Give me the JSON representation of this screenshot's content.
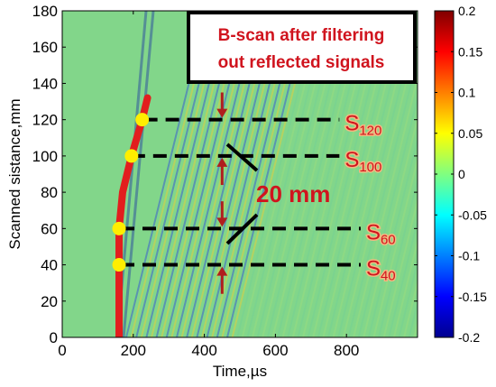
{
  "chart_data": {
    "type": "heatmap",
    "title": "B-scan after filtering out reflected signals",
    "title_lines": [
      "B-scan after filtering",
      "out reflected signals"
    ],
    "xlabel": "Time,µs",
    "ylabel": "Scanned sistance,mm",
    "xlim": [
      0,
      1000
    ],
    "ylim": [
      0,
      180
    ],
    "xticks": [
      0,
      200,
      400,
      600,
      800
    ],
    "yticks": [
      0,
      20,
      40,
      60,
      80,
      100,
      120,
      140,
      160,
      180
    ],
    "colorbar": {
      "min": -0.2,
      "max": 0.2,
      "ticks": [
        0.2,
        0.15,
        0.1,
        0.05,
        0,
        -0.05,
        -0.1,
        -0.15,
        -0.2
      ]
    },
    "markers": [
      {
        "x": 160,
        "y": 40,
        "color": "#ffee00"
      },
      {
        "x": 160,
        "y": 60,
        "color": "#ffee00"
      },
      {
        "x": 195,
        "y": 100,
        "color": "#ffee00"
      },
      {
        "x": 225,
        "y": 120,
        "color": "#ffee00"
      }
    ],
    "trace": {
      "color": "#e21e1e",
      "points": [
        [
          160,
          0
        ],
        [
          160,
          40
        ],
        [
          160,
          60
        ],
        [
          170,
          80
        ],
        [
          195,
          100
        ],
        [
          225,
          120
        ],
        [
          240,
          132
        ]
      ]
    },
    "reference_lines": [
      {
        "y": 120,
        "x0": 230,
        "x1": 780,
        "label": "S",
        "sub": "120"
      },
      {
        "y": 100,
        "x0": 195,
        "x1": 780,
        "label": "S",
        "sub": "100"
      },
      {
        "y": 60,
        "x0": 165,
        "x1": 840,
        "label": "S",
        "sub": "60"
      },
      {
        "y": 40,
        "x0": 165,
        "x1": 840,
        "label": "S",
        "sub": "40"
      }
    ],
    "arrows": [
      {
        "x": 450,
        "y_from": 135,
        "y_to": 121,
        "color": "#b01e1e"
      },
      {
        "x": 450,
        "y_from": 84,
        "y_to": 99,
        "color": "#b01e1e"
      },
      {
        "x": 450,
        "y_from": 75,
        "y_to": 61,
        "color": "#b01e1e"
      },
      {
        "x": 450,
        "y_from": 24,
        "y_to": 39,
        "color": "#b01e1e"
      }
    ],
    "dimension_annotation": "20 mm",
    "background_color": "#82d68a"
  }
}
